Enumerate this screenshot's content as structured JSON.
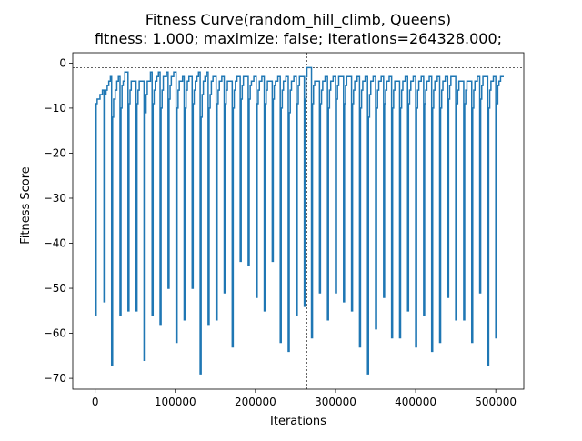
{
  "chart_data": {
    "type": "line",
    "title": "Fitness Curve(random_hill_climb, Queens)",
    "subtitle": "fitness: 1.000; maximize: false; Iterations=264328.000;",
    "xlabel": "Iterations",
    "ylabel": "Fitness Score",
    "xlim": [
      -28000,
      535000
    ],
    "ylim": [
      -72.4,
      2.3
    ],
    "x_ticks": [
      0,
      100000,
      200000,
      300000,
      400000,
      500000
    ],
    "x_tick_labels": [
      "0",
      "100000",
      "200000",
      "300000",
      "400000",
      "500000"
    ],
    "y_ticks": [
      0,
      -10,
      -20,
      -30,
      -40,
      -50,
      -60,
      -70
    ],
    "y_tick_labels": [
      "0",
      "−10",
      "−20",
      "−30",
      "−40",
      "−50",
      "−60",
      "−70"
    ],
    "grid": false,
    "series_color": "#1f77b4",
    "reference_lines": {
      "best_fitness": -1,
      "best_iteration": 264328
    },
    "restarts": [
      {
        "x": 0,
        "y0": -56,
        "plateaus": [
          [
            1200,
            -9
          ],
          [
            2500,
            -8
          ],
          [
            4000,
            -8
          ],
          [
            6000,
            -7
          ],
          [
            9000,
            -6
          ]
        ]
      },
      {
        "x": 11000,
        "y0": -53,
        "plateaus": [
          [
            12200,
            -7
          ],
          [
            13500,
            -6
          ],
          [
            15000,
            -5
          ],
          [
            17000,
            -4
          ],
          [
            19000,
            -3
          ]
        ]
      },
      {
        "x": 20500,
        "y0": -67,
        "plateaus": [
          [
            21700,
            -12
          ],
          [
            23000,
            -8
          ],
          [
            25000,
            -6
          ],
          [
            27000,
            -4
          ],
          [
            29000,
            -3
          ]
        ]
      },
      {
        "x": 31000,
        "y0": -56,
        "plateaus": [
          [
            32200,
            -10
          ],
          [
            33500,
            -5
          ],
          [
            35000,
            -4
          ],
          [
            37000,
            -2
          ]
        ]
      },
      {
        "x": 41000,
        "y0": -55,
        "plateaus": [
          [
            42200,
            -9
          ],
          [
            43500,
            -6
          ],
          [
            45000,
            -4
          ],
          [
            49000,
            -4
          ]
        ]
      },
      {
        "x": 51000,
        "y0": -55,
        "plateaus": [
          [
            52200,
            -9
          ],
          [
            53500,
            -6
          ],
          [
            55000,
            -4
          ],
          [
            59000,
            -4
          ]
        ]
      },
      {
        "x": 61000,
        "y0": -66,
        "plateaus": [
          [
            62200,
            -11
          ],
          [
            63500,
            -7
          ],
          [
            65000,
            -4
          ],
          [
            67000,
            -4
          ],
          [
            69000,
            -2
          ]
        ]
      },
      {
        "x": 71000,
        "y0": -56,
        "plateaus": [
          [
            72200,
            -9
          ],
          [
            73500,
            -6
          ],
          [
            75000,
            -4
          ],
          [
            77000,
            -3
          ],
          [
            79000,
            -2
          ]
        ]
      },
      {
        "x": 81000,
        "y0": -58,
        "plateaus": [
          [
            82200,
            -10
          ],
          [
            83500,
            -6
          ],
          [
            85000,
            -3
          ],
          [
            87000,
            -3
          ],
          [
            89000,
            -2
          ]
        ]
      },
      {
        "x": 91000,
        "y0": -50,
        "plateaus": [
          [
            92200,
            -8
          ],
          [
            93500,
            -5
          ],
          [
            95000,
            -3
          ],
          [
            98000,
            -2
          ]
        ]
      },
      {
        "x": 101000,
        "y0": -62,
        "plateaus": [
          [
            102200,
            -10
          ],
          [
            103500,
            -6
          ],
          [
            105000,
            -4
          ],
          [
            107000,
            -4
          ],
          [
            109000,
            -3
          ]
        ]
      },
      {
        "x": 111000,
        "y0": -57,
        "plateaus": [
          [
            112200,
            -10
          ],
          [
            113500,
            -6
          ],
          [
            115000,
            -4
          ],
          [
            117000,
            -3
          ]
        ]
      },
      {
        "x": 121000,
        "y0": -50,
        "plateaus": [
          [
            122200,
            -9
          ],
          [
            123500,
            -6
          ],
          [
            125000,
            -4
          ],
          [
            127000,
            -3
          ],
          [
            129000,
            -2
          ]
        ]
      },
      {
        "x": 131000,
        "y0": -69,
        "plateaus": [
          [
            132200,
            -12
          ],
          [
            133500,
            -7
          ],
          [
            135000,
            -4
          ],
          [
            137000,
            -3
          ],
          [
            139000,
            -2
          ]
        ]
      },
      {
        "x": 141000,
        "y0": -58,
        "plateaus": [
          [
            142200,
            -10
          ],
          [
            143500,
            -7
          ],
          [
            145000,
            -4
          ],
          [
            147000,
            -3
          ]
        ]
      },
      {
        "x": 151000,
        "y0": -57,
        "plateaus": [
          [
            152200,
            -9
          ],
          [
            153500,
            -6
          ],
          [
            155000,
            -4
          ],
          [
            158000,
            -3
          ]
        ]
      },
      {
        "x": 161000,
        "y0": -51,
        "plateaus": [
          [
            162200,
            -9
          ],
          [
            163500,
            -6
          ],
          [
            165000,
            -4
          ],
          [
            168000,
            -4
          ]
        ]
      },
      {
        "x": 171000,
        "y0": -63,
        "plateaus": [
          [
            172200,
            -10
          ],
          [
            173500,
            -6
          ],
          [
            175000,
            -4
          ],
          [
            177000,
            -3
          ]
        ]
      },
      {
        "x": 181000,
        "y0": -44,
        "plateaus": [
          [
            182200,
            -8
          ],
          [
            183500,
            -5
          ],
          [
            185000,
            -3
          ],
          [
            188000,
            -3
          ]
        ]
      },
      {
        "x": 191000,
        "y0": -45,
        "plateaus": [
          [
            192200,
            -8
          ],
          [
            193500,
            -5
          ],
          [
            195000,
            -4
          ],
          [
            198000,
            -3
          ]
        ]
      },
      {
        "x": 201000,
        "y0": -52,
        "plateaus": [
          [
            202200,
            -9
          ],
          [
            203500,
            -6
          ],
          [
            205000,
            -4
          ],
          [
            208000,
            -3
          ]
        ]
      },
      {
        "x": 211000,
        "y0": -55,
        "plateaus": [
          [
            212200,
            -9
          ],
          [
            213500,
            -6
          ],
          [
            215000,
            -4
          ],
          [
            218000,
            -4
          ]
        ]
      },
      {
        "x": 221000,
        "y0": -44,
        "plateaus": [
          [
            222200,
            -8
          ],
          [
            223500,
            -5
          ],
          [
            225000,
            -4
          ],
          [
            228000,
            -3
          ]
        ]
      },
      {
        "x": 231000,
        "y0": -62,
        "plateaus": [
          [
            232200,
            -10
          ],
          [
            233500,
            -6
          ],
          [
            235000,
            -4
          ],
          [
            238000,
            -3
          ]
        ]
      },
      {
        "x": 241000,
        "y0": -64,
        "plateaus": [
          [
            242200,
            -11
          ],
          [
            243500,
            -6
          ],
          [
            245000,
            -4
          ],
          [
            248000,
            -3
          ]
        ]
      },
      {
        "x": 251000,
        "y0": -56,
        "plateaus": [
          [
            252200,
            -9
          ],
          [
            253500,
            -5
          ],
          [
            255000,
            -3
          ],
          [
            258000,
            -3
          ]
        ]
      },
      {
        "x": 261000,
        "y0": -54,
        "plateaus": [
          [
            262000,
            -8
          ],
          [
            263200,
            -3
          ],
          [
            264328,
            -1
          ],
          [
            268000,
            -1
          ]
        ]
      },
      {
        "x": 270000,
        "y0": -61,
        "plateaus": [
          [
            271200,
            -9
          ],
          [
            272500,
            -5
          ],
          [
            274000,
            -4
          ],
          [
            277000,
            -4
          ]
        ]
      },
      {
        "x": 280000,
        "y0": -51,
        "plateaus": [
          [
            281200,
            -9
          ],
          [
            282500,
            -6
          ],
          [
            284000,
            -4
          ],
          [
            287000,
            -3
          ]
        ]
      },
      {
        "x": 290000,
        "y0": -57,
        "plateaus": [
          [
            291200,
            -10
          ],
          [
            292500,
            -6
          ],
          [
            294000,
            -4
          ],
          [
            297000,
            -3
          ]
        ]
      },
      {
        "x": 300000,
        "y0": -51,
        "plateaus": [
          [
            301200,
            -8
          ],
          [
            302500,
            -5
          ],
          [
            304000,
            -3
          ],
          [
            307000,
            -3
          ]
        ]
      },
      {
        "x": 310000,
        "y0": -53,
        "plateaus": [
          [
            311200,
            -9
          ],
          [
            312500,
            -5
          ],
          [
            314000,
            -3
          ],
          [
            317000,
            -3
          ]
        ]
      },
      {
        "x": 320000,
        "y0": -55,
        "plateaus": [
          [
            321200,
            -9
          ],
          [
            322500,
            -6
          ],
          [
            324000,
            -4
          ],
          [
            327000,
            -3
          ]
        ]
      },
      {
        "x": 330000,
        "y0": -63,
        "plateaus": [
          [
            331200,
            -10
          ],
          [
            332500,
            -6
          ],
          [
            334000,
            -4
          ],
          [
            337000,
            -3
          ]
        ]
      },
      {
        "x": 340000,
        "y0": -69,
        "plateaus": [
          [
            341200,
            -12
          ],
          [
            342500,
            -7
          ],
          [
            344000,
            -4
          ],
          [
            347000,
            -3
          ]
        ]
      },
      {
        "x": 350000,
        "y0": -59,
        "plateaus": [
          [
            351200,
            -10
          ],
          [
            352500,
            -6
          ],
          [
            354000,
            -4
          ],
          [
            357000,
            -3
          ]
        ]
      },
      {
        "x": 360000,
        "y0": -52,
        "plateaus": [
          [
            361200,
            -9
          ],
          [
            362500,
            -6
          ],
          [
            364000,
            -4
          ],
          [
            367000,
            -3
          ]
        ]
      },
      {
        "x": 370000,
        "y0": -61,
        "plateaus": [
          [
            371200,
            -10
          ],
          [
            372500,
            -6
          ],
          [
            374000,
            -4
          ],
          [
            377000,
            -4
          ]
        ]
      },
      {
        "x": 380000,
        "y0": -61,
        "plateaus": [
          [
            381200,
            -10
          ],
          [
            382500,
            -6
          ],
          [
            384000,
            -4
          ],
          [
            387000,
            -3
          ]
        ]
      },
      {
        "x": 390000,
        "y0": -55,
        "plateaus": [
          [
            391200,
            -9
          ],
          [
            392500,
            -6
          ],
          [
            394000,
            -4
          ],
          [
            397000,
            -3
          ]
        ]
      },
      {
        "x": 400000,
        "y0": -63,
        "plateaus": [
          [
            401200,
            -10
          ],
          [
            402500,
            -6
          ],
          [
            404000,
            -4
          ],
          [
            407000,
            -3
          ]
        ]
      },
      {
        "x": 410000,
        "y0": -56,
        "plateaus": [
          [
            411200,
            -9
          ],
          [
            412500,
            -6
          ],
          [
            414000,
            -4
          ],
          [
            417000,
            -3
          ]
        ]
      },
      {
        "x": 420000,
        "y0": -64,
        "plateaus": [
          [
            421200,
            -10
          ],
          [
            422500,
            -6
          ],
          [
            424000,
            -4
          ],
          [
            427000,
            -3
          ]
        ]
      },
      {
        "x": 430000,
        "y0": -62,
        "plateaus": [
          [
            431200,
            -10
          ],
          [
            432500,
            -6
          ],
          [
            434000,
            -4
          ],
          [
            437000,
            -3
          ]
        ]
      },
      {
        "x": 440000,
        "y0": -52,
        "plateaus": [
          [
            441200,
            -8
          ],
          [
            442500,
            -5
          ],
          [
            444000,
            -3
          ],
          [
            447000,
            -3
          ]
        ]
      },
      {
        "x": 450000,
        "y0": -57,
        "plateaus": [
          [
            451200,
            -9
          ],
          [
            452500,
            -6
          ],
          [
            454000,
            -4
          ],
          [
            457000,
            -4
          ]
        ]
      },
      {
        "x": 460000,
        "y0": -57,
        "plateaus": [
          [
            461200,
            -9
          ],
          [
            462500,
            -6
          ],
          [
            464000,
            -4
          ],
          [
            467000,
            -4
          ]
        ]
      },
      {
        "x": 470000,
        "y0": -62,
        "plateaus": [
          [
            471200,
            -10
          ],
          [
            472500,
            -6
          ],
          [
            474000,
            -4
          ],
          [
            477000,
            -3
          ]
        ]
      },
      {
        "x": 480000,
        "y0": -51,
        "plateaus": [
          [
            481200,
            -8
          ],
          [
            482500,
            -5
          ],
          [
            484000,
            -3
          ],
          [
            487000,
            -3
          ]
        ]
      },
      {
        "x": 490000,
        "y0": -67,
        "plateaus": [
          [
            491200,
            -10
          ],
          [
            492500,
            -6
          ],
          [
            494000,
            -4
          ],
          [
            497000,
            -3
          ]
        ]
      },
      {
        "x": 500000,
        "y0": -61,
        "plateaus": [
          [
            501200,
            -9
          ],
          [
            502500,
            -5
          ],
          [
            504000,
            -4
          ],
          [
            506000,
            -3
          ],
          [
            510000,
            -3
          ]
        ]
      }
    ]
  }
}
